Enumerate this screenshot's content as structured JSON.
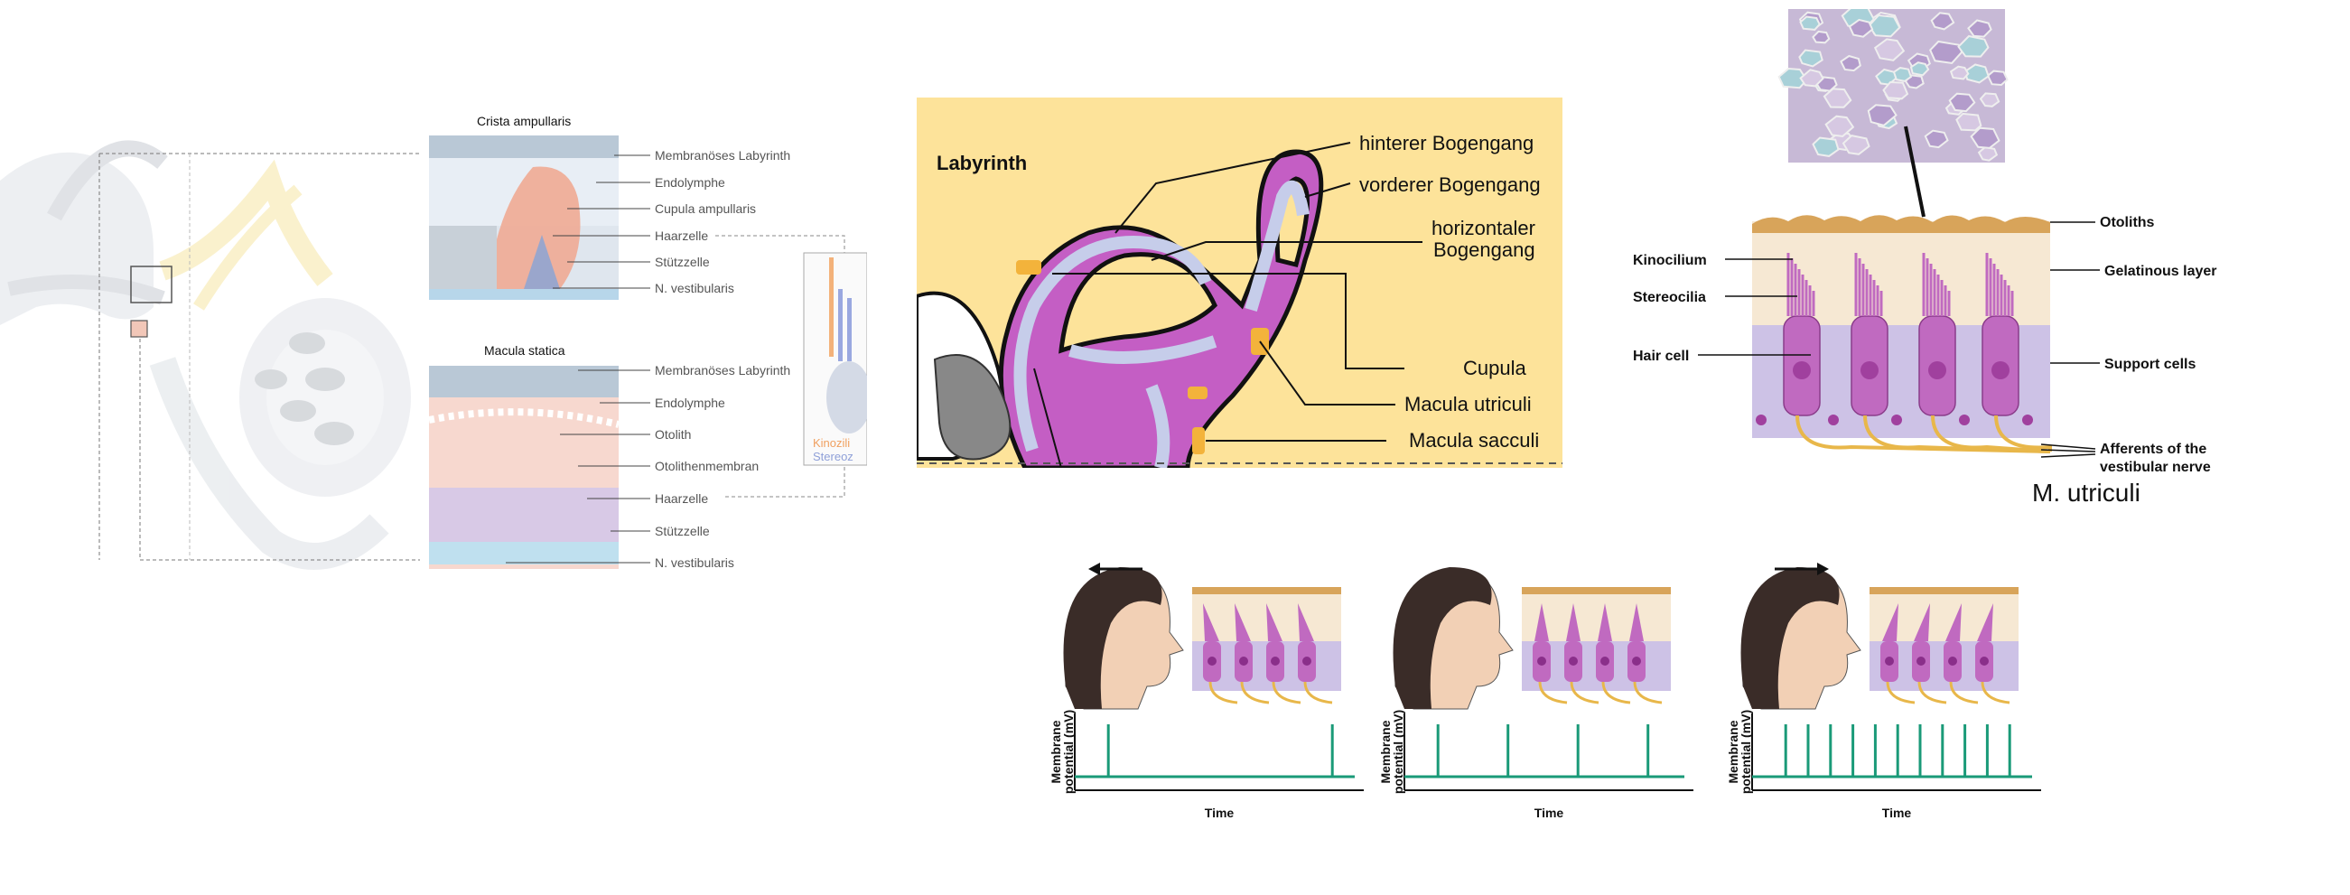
{
  "crista": {
    "title": "Crista ampullaris",
    "labels": [
      "Membranöses Labyrinth",
      "Endolymphe",
      "Cupula ampullaris",
      "Haarzelle",
      "Stützzelle",
      "N. vestibularis"
    ]
  },
  "macula_statica": {
    "title": "Macula statica",
    "labels": [
      "Membranöses Labyrinth",
      "Endolymphe",
      "Otolith",
      "Otolithenmembran",
      "Haarzelle",
      "Stützzelle",
      "N. vestibularis"
    ]
  },
  "side_cell": {
    "label1": "Kinozili",
    "label2": "Stereoz"
  },
  "labyrinth": {
    "title": "Labyrinth",
    "labels": {
      "hinterer": "hinterer  Bogengang",
      "vorderer": "vorderer Bogengang",
      "horiz1": "horizontaler",
      "horiz2": "Bogengang",
      "cupula": "Cupula",
      "utriculi": "Macula utriculi",
      "sacculi": "Macula sacculi"
    }
  },
  "utriculus": {
    "left_labels": [
      "Kinocilium",
      "Stereocilia",
      "Hair cell"
    ],
    "right_labels": [
      "Otoliths",
      "Gelatinous layer",
      "Support cells"
    ],
    "afferents_1": "Afferents of the",
    "afferents_2": "vestibular nerve",
    "caption": "M. utriculi"
  },
  "response": {
    "ylabel_1": "Membrane",
    "ylabel_2": "potential (mV)",
    "xlabel": "Time",
    "panels": [
      {
        "direction": "left",
        "spike_times": [
          0.12,
          0.92
        ]
      },
      {
        "direction": "none",
        "spike_times": [
          0.12,
          0.37,
          0.62,
          0.87
        ]
      },
      {
        "direction": "right",
        "spike_times": [
          0.12,
          0.2,
          0.28,
          0.36,
          0.44,
          0.52,
          0.6,
          0.68,
          0.76,
          0.84,
          0.92
        ]
      }
    ]
  },
  "colors": {
    "spike": "#1a9a78",
    "hair_cell": "#c06ac0",
    "support": "#cdc2e6",
    "nerve": "#e8b74a",
    "labyrinth_bg": "#fde39a",
    "labyrinth_duct": "#c45ec4"
  }
}
